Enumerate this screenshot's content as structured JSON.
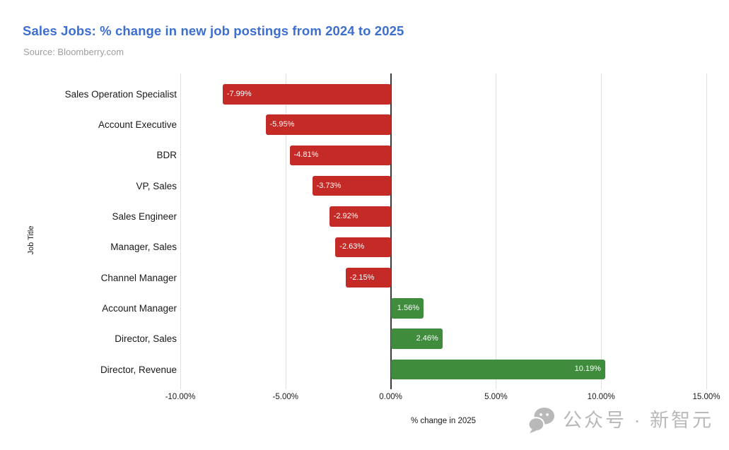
{
  "header": {
    "title": "Sales Jobs: % change in new job postings from 2024 to 2025",
    "source": "Source: Bloomberry.com"
  },
  "chart_data": {
    "type": "bar",
    "orientation": "horizontal",
    "title": "Sales Jobs: % change in new job postings from 2024 to 2025",
    "xlabel": "% change in 2025",
    "ylabel": "Job Title",
    "categories": [
      "Sales Operation Specialist",
      "Account Executive",
      "BDR",
      "VP, Sales",
      "Sales Engineer",
      "Manager, Sales",
      "Channel Manager",
      "Account Manager",
      "Director, Sales",
      "Director, Revenue"
    ],
    "values": [
      -7.99,
      -5.95,
      -4.81,
      -3.73,
      -2.92,
      -2.63,
      -2.15,
      1.56,
      2.46,
      10.19
    ],
    "value_labels": [
      "-7.99%",
      "-5.95%",
      "-4.81%",
      "-3.73%",
      "-2.92%",
      "-2.63%",
      "-2.15%",
      "1.56%",
      "2.46%",
      "10.19%"
    ],
    "xlim": [
      -10,
      15
    ],
    "x_ticks": [
      -10,
      -5,
      0,
      5,
      10,
      15
    ],
    "x_tick_labels": [
      "-10.00%",
      "-5.00%",
      "0.00%",
      "5.00%",
      "10.00%",
      "15.00%"
    ],
    "grid": true,
    "legend": "none"
  },
  "colors": {
    "title": "#3d6fd0",
    "source_text": "#9e9e9e",
    "negative_bar": "#c42a26",
    "positive_bar": "#3e8c3c",
    "gridline": "#e0e0e0",
    "zero_line": "#3c3c3c",
    "bar_value_text": "#ffffff",
    "watermark": "#b9b9b9"
  },
  "watermark": {
    "text": "公众号 · 新智元",
    "icon": "wechat-icon"
  }
}
